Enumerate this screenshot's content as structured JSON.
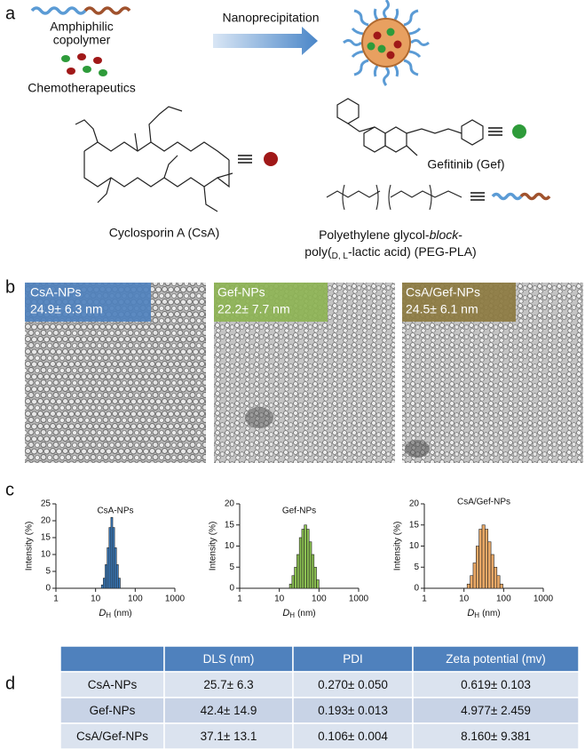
{
  "panel_labels": [
    "a",
    "b",
    "c",
    "d"
  ],
  "schematic": {
    "copolymer_label": [
      "Amphiphilic",
      "copolymer"
    ],
    "drug_label": "Chemotherapeutics",
    "process_label": "Nanoprecipitation",
    "csa_name": "Cyclosporin A (CsA)",
    "gef_name": "Gefitinib (Gef)",
    "peg_pla_name": [
      "Polyethylene glycol-",
      "block",
      "-",
      "poly(",
      "D, L",
      "-lactic acid) (PEG-PLA)"
    ]
  },
  "tem_images": [
    {
      "name": "CsA-NPs",
      "size": "24.9± 6.3 nm"
    },
    {
      "name": "Gef-NPs",
      "size": "22.2± 7.7 nm"
    },
    {
      "name": "CsA/Gef-NPs",
      "size": "24.5± 6.1 nm"
    }
  ],
  "chart_data": [
    {
      "type": "histogram",
      "title": "CsA-NPs",
      "color": "#3b7fc4",
      "bins": [
        14,
        15.6,
        17.4,
        19.5,
        21.8,
        24.3,
        27.1,
        30.2,
        33.7,
        37.6,
        42
      ],
      "values": [
        1,
        3,
        7,
        12,
        18,
        21,
        18,
        12,
        7,
        3
      ],
      "log_x": true,
      "xlim": [
        1,
        1000
      ],
      "xticks": [
        1,
        10,
        100,
        1000
      ],
      "ylim": [
        0,
        25
      ],
      "yticks": [
        0,
        5,
        10,
        15,
        20,
        25
      ],
      "y_label": "Intensity (%)",
      "x_label": {
        "symbol": "D",
        "subscript": "H",
        "unit": "(nm)"
      }
    },
    {
      "type": "histogram",
      "title": "Gef-NPs",
      "color": "#8cc152",
      "bins": [
        18,
        20.8,
        24,
        27.6,
        31.9,
        36.8,
        42.4,
        48.9,
        56.4,
        65.1,
        75.1,
        86.6,
        100
      ],
      "values": [
        1,
        3,
        5,
        8,
        12,
        14,
        15,
        14,
        11,
        8,
        5,
        2
      ],
      "log_x": true,
      "xlim": [
        1,
        1000
      ],
      "xticks": [
        1,
        10,
        100,
        1000
      ],
      "ylim": [
        0,
        20
      ],
      "yticks": [
        0,
        5,
        10,
        15,
        20
      ],
      "y_label": "Intensity (%)",
      "x_label": {
        "symbol": "D",
        "subscript": "H",
        "unit": "(nm)"
      }
    },
    {
      "type": "histogram",
      "title": "CsA/Gef-NPs",
      "color": "#e9a866",
      "bins": [
        12,
        14.3,
        17,
        20.2,
        24,
        28.5,
        33.9,
        40.3,
        48,
        57.1,
        67.9,
        80.7,
        96
      ],
      "values": [
        1,
        3,
        6,
        10,
        14,
        15,
        14,
        11,
        8,
        5,
        3,
        1
      ],
      "log_x": true,
      "xlim": [
        1,
        1000
      ],
      "xticks": [
        1,
        10,
        100,
        1000
      ],
      "ylim": [
        0,
        20
      ],
      "yticks": [
        0,
        5,
        10,
        15,
        20
      ],
      "y_label": "Intensity (%)",
      "x_label": {
        "symbol": "D",
        "subscript": "H",
        "unit": "(nm)"
      }
    }
  ],
  "table": {
    "header": [
      "",
      "DLS (nm)",
      "PDI",
      "Zeta potential (mv)"
    ],
    "rows": [
      [
        "CsA-NPs",
        "25.7± 6.3",
        "0.270± 0.050",
        "0.619± 0.103"
      ],
      [
        "Gef-NPs",
        "42.4± 14.9",
        "0.193± 0.013",
        "4.977± 2.459"
      ],
      [
        "CsA/Gef-NPs",
        "37.1± 13.1",
        "0.106± 0.004",
        "8.160± 9.381"
      ]
    ]
  }
}
